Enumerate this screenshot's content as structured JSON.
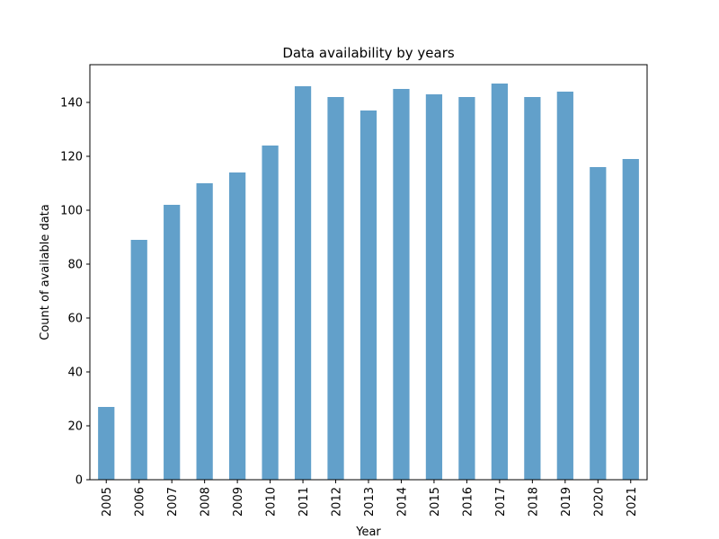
{
  "chart_data": {
    "type": "bar",
    "title": "Data availability by years",
    "xlabel": "Year",
    "ylabel": "Count of available data",
    "categories": [
      "2005",
      "2006",
      "2007",
      "2008",
      "2009",
      "2010",
      "2011",
      "2012",
      "2013",
      "2014",
      "2015",
      "2016",
      "2017",
      "2018",
      "2019",
      "2020",
      "2021"
    ],
    "values": [
      27,
      89,
      102,
      110,
      114,
      124,
      146,
      142,
      137,
      145,
      143,
      142,
      147,
      142,
      144,
      116,
      119
    ],
    "ylim": [
      0,
      154
    ],
    "yticks": [
      0,
      20,
      40,
      60,
      80,
      100,
      120,
      140
    ],
    "grid": false,
    "legend": "none",
    "bar_color": "#62a0ca"
  }
}
